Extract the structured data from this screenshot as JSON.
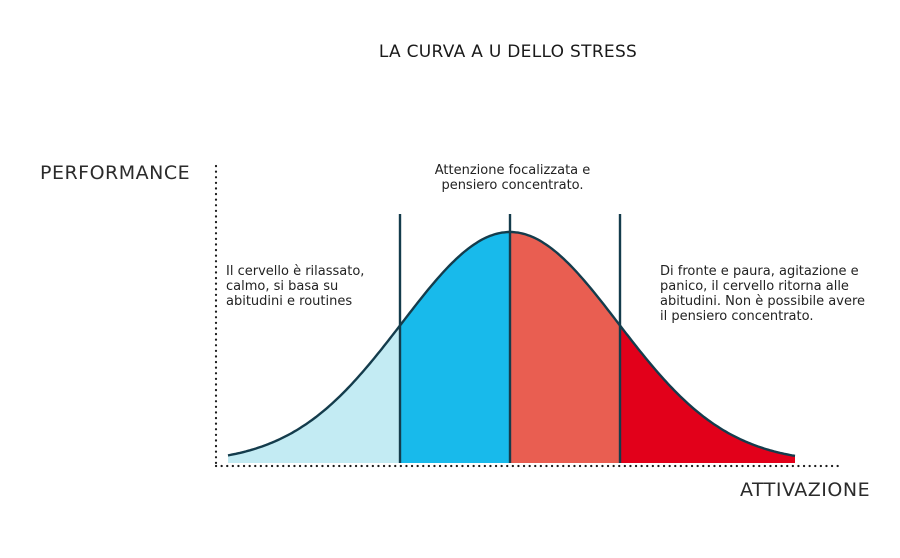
{
  "title": "LA CURVA A U DELLO STRESS",
  "axes": {
    "y_label": "PERFORMANCE",
    "x_label": "ATTIVAZIONE"
  },
  "zones": [
    {
      "id": "relaxed",
      "color": "#c3ebf3",
      "text": "Il cervello è rilassato, calmo, si basa su abitudini e routines"
    },
    {
      "id": "focused-low",
      "color": "#18baeb",
      "text": "Attenzione focalizzata e pensiero concentrato."
    },
    {
      "id": "focused-high",
      "color": "#e95e51"
    },
    {
      "id": "panic",
      "color": "#e2001a",
      "text": "Di fronte e paura, agitazione e panico, il cervello ritorna alle abitudini. Non è possibile avere il pensiero concentrato."
    }
  ],
  "colors": {
    "curve": "#143c4c",
    "dividers": "#143c4c",
    "axis_dots": "#1a1a1a"
  }
}
